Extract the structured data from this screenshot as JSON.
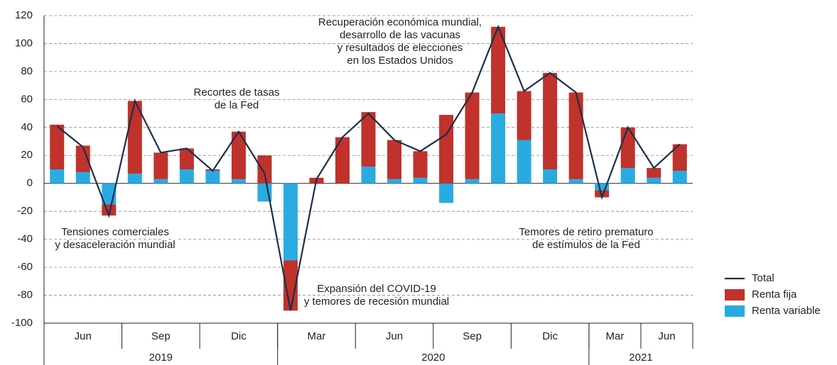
{
  "chart_data": {
    "type": "bar",
    "categories": [
      null,
      null,
      null,
      null,
      null,
      null,
      null,
      null,
      null,
      null,
      null,
      null,
      null,
      null,
      null,
      null,
      null,
      null,
      null,
      null,
      null,
      null,
      null,
      null,
      null
    ],
    "series": [
      {
        "name": "Renta variable",
        "color": "#29abe2",
        "values": [
          10,
          8,
          -15,
          7,
          3,
          10,
          9,
          3,
          -13,
          -55,
          0,
          0,
          12,
          3,
          4,
          -14,
          3,
          50,
          31,
          10,
          3,
          -5,
          11,
          4,
          9
        ]
      },
      {
        "name": "Renta fija",
        "color": "#c0322b",
        "values": [
          32,
          19,
          -8,
          52,
          19,
          15,
          1,
          34,
          20,
          -36,
          4,
          33,
          39,
          28,
          19,
          49,
          62,
          62,
          35,
          69,
          62,
          -5,
          29,
          7,
          19
        ]
      },
      {
        "name": "Total",
        "type": "line",
        "color": "#1b2f4b",
        "values": [
          41,
          26,
          -23,
          59,
          22,
          25,
          9,
          37,
          7,
          -91,
          3,
          33,
          50,
          31,
          23,
          35,
          65,
          112,
          66,
          79,
          65,
          -10,
          40,
          11,
          28
        ]
      }
    ],
    "quarter_groups": [
      {
        "label": "Jun",
        "count": 3
      },
      {
        "label": "Sep",
        "count": 3
      },
      {
        "label": "Dic",
        "count": 3
      },
      {
        "label": "Mar",
        "count": 3
      },
      {
        "label": "Jun",
        "count": 3
      },
      {
        "label": "Sep",
        "count": 3
      },
      {
        "label": "Dic",
        "count": 3
      },
      {
        "label": "Mar",
        "count": 2
      },
      {
        "label": "Jun",
        "count": 2
      }
    ],
    "year_groups": [
      {
        "label": "2019",
        "count": 9
      },
      {
        "label": "2020",
        "count": 12
      },
      {
        "label": "2021",
        "count": 4
      }
    ],
    "annotations": [
      {
        "lines": [
          "Recuperación económica mundial,",
          "desarrollo de las vacunas",
          "y resultados de elecciones",
          "en los Estados Unidos"
        ]
      },
      {
        "lines": [
          "Recortes de tasas",
          "de la Fed"
        ]
      },
      {
        "lines": [
          "Tensiones comerciales",
          "y desaceleración mundial"
        ]
      },
      {
        "lines": [
          "Expansión del COVID-19",
          "y temores de recesión mundial"
        ]
      },
      {
        "lines": [
          "Temores de retiro prematuro",
          "de estímulos de la Fed"
        ]
      }
    ],
    "ylim": [
      -100,
      120
    ],
    "yticks": [
      -100,
      -80,
      -60,
      -40,
      -20,
      0,
      20,
      40,
      60,
      80,
      100,
      120
    ],
    "grid": true
  }
}
